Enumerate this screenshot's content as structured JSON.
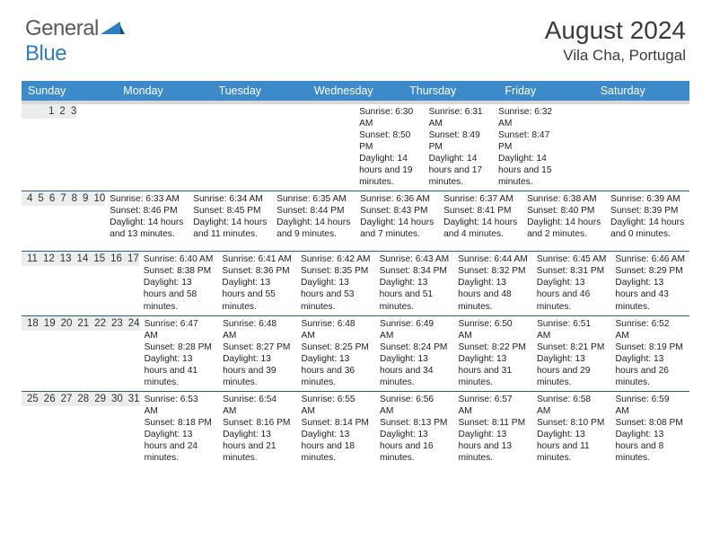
{
  "brand": {
    "general": "General",
    "blue": "Blue"
  },
  "title": {
    "month": "August 2024",
    "location": "Vila Cha, Portugal"
  },
  "colors": {
    "header_bg": "#3c8ac9",
    "header_text": "#ffffff",
    "daynum_bg": "#eceded",
    "week_divider": "#2b5e8c",
    "body_text": "#222222",
    "title_text": "#3a3a3a",
    "logo_gray": "#5a5a5a",
    "logo_blue": "#2e7cc4"
  },
  "daynames": [
    "Sunday",
    "Monday",
    "Tuesday",
    "Wednesday",
    "Thursday",
    "Friday",
    "Saturday"
  ],
  "weeks": [
    {
      "nums": [
        "",
        "",
        "",
        "",
        "1",
        "2",
        "3"
      ],
      "cells": [
        null,
        null,
        null,
        null,
        {
          "sr": "6:30 AM",
          "ss": "8:50 PM",
          "dl": "14 hours and 19 minutes."
        },
        {
          "sr": "6:31 AM",
          "ss": "8:49 PM",
          "dl": "14 hours and 17 minutes."
        },
        {
          "sr": "6:32 AM",
          "ss": "8:47 PM",
          "dl": "14 hours and 15 minutes."
        }
      ]
    },
    {
      "nums": [
        "4",
        "5",
        "6",
        "7",
        "8",
        "9",
        "10"
      ],
      "cells": [
        {
          "sr": "6:33 AM",
          "ss": "8:46 PM",
          "dl": "14 hours and 13 minutes."
        },
        {
          "sr": "6:34 AM",
          "ss": "8:45 PM",
          "dl": "14 hours and 11 minutes."
        },
        {
          "sr": "6:35 AM",
          "ss": "8:44 PM",
          "dl": "14 hours and 9 minutes."
        },
        {
          "sr": "6:36 AM",
          "ss": "8:43 PM",
          "dl": "14 hours and 7 minutes."
        },
        {
          "sr": "6:37 AM",
          "ss": "8:41 PM",
          "dl": "14 hours and 4 minutes."
        },
        {
          "sr": "6:38 AM",
          "ss": "8:40 PM",
          "dl": "14 hours and 2 minutes."
        },
        {
          "sr": "6:39 AM",
          "ss": "8:39 PM",
          "dl": "14 hours and 0 minutes."
        }
      ]
    },
    {
      "nums": [
        "11",
        "12",
        "13",
        "14",
        "15",
        "16",
        "17"
      ],
      "cells": [
        {
          "sr": "6:40 AM",
          "ss": "8:38 PM",
          "dl": "13 hours and 58 minutes."
        },
        {
          "sr": "6:41 AM",
          "ss": "8:36 PM",
          "dl": "13 hours and 55 minutes."
        },
        {
          "sr": "6:42 AM",
          "ss": "8:35 PM",
          "dl": "13 hours and 53 minutes."
        },
        {
          "sr": "6:43 AM",
          "ss": "8:34 PM",
          "dl": "13 hours and 51 minutes."
        },
        {
          "sr": "6:44 AM",
          "ss": "8:32 PM",
          "dl": "13 hours and 48 minutes."
        },
        {
          "sr": "6:45 AM",
          "ss": "8:31 PM",
          "dl": "13 hours and 46 minutes."
        },
        {
          "sr": "6:46 AM",
          "ss": "8:29 PM",
          "dl": "13 hours and 43 minutes."
        }
      ]
    },
    {
      "nums": [
        "18",
        "19",
        "20",
        "21",
        "22",
        "23",
        "24"
      ],
      "cells": [
        {
          "sr": "6:47 AM",
          "ss": "8:28 PM",
          "dl": "13 hours and 41 minutes."
        },
        {
          "sr": "6:48 AM",
          "ss": "8:27 PM",
          "dl": "13 hours and 39 minutes."
        },
        {
          "sr": "6:48 AM",
          "ss": "8:25 PM",
          "dl": "13 hours and 36 minutes."
        },
        {
          "sr": "6:49 AM",
          "ss": "8:24 PM",
          "dl": "13 hours and 34 minutes."
        },
        {
          "sr": "6:50 AM",
          "ss": "8:22 PM",
          "dl": "13 hours and 31 minutes."
        },
        {
          "sr": "6:51 AM",
          "ss": "8:21 PM",
          "dl": "13 hours and 29 minutes."
        },
        {
          "sr": "6:52 AM",
          "ss": "8:19 PM",
          "dl": "13 hours and 26 minutes."
        }
      ]
    },
    {
      "nums": [
        "25",
        "26",
        "27",
        "28",
        "29",
        "30",
        "31"
      ],
      "cells": [
        {
          "sr": "6:53 AM",
          "ss": "8:18 PM",
          "dl": "13 hours and 24 minutes."
        },
        {
          "sr": "6:54 AM",
          "ss": "8:16 PM",
          "dl": "13 hours and 21 minutes."
        },
        {
          "sr": "6:55 AM",
          "ss": "8:14 PM",
          "dl": "13 hours and 18 minutes."
        },
        {
          "sr": "6:56 AM",
          "ss": "8:13 PM",
          "dl": "13 hours and 16 minutes."
        },
        {
          "sr": "6:57 AM",
          "ss": "8:11 PM",
          "dl": "13 hours and 13 minutes."
        },
        {
          "sr": "6:58 AM",
          "ss": "8:10 PM",
          "dl": "13 hours and 11 minutes."
        },
        {
          "sr": "6:59 AM",
          "ss": "8:08 PM",
          "dl": "13 hours and 8 minutes."
        }
      ]
    }
  ],
  "labels": {
    "sunrise": "Sunrise:",
    "sunset": "Sunset:",
    "daylight": "Daylight:"
  }
}
